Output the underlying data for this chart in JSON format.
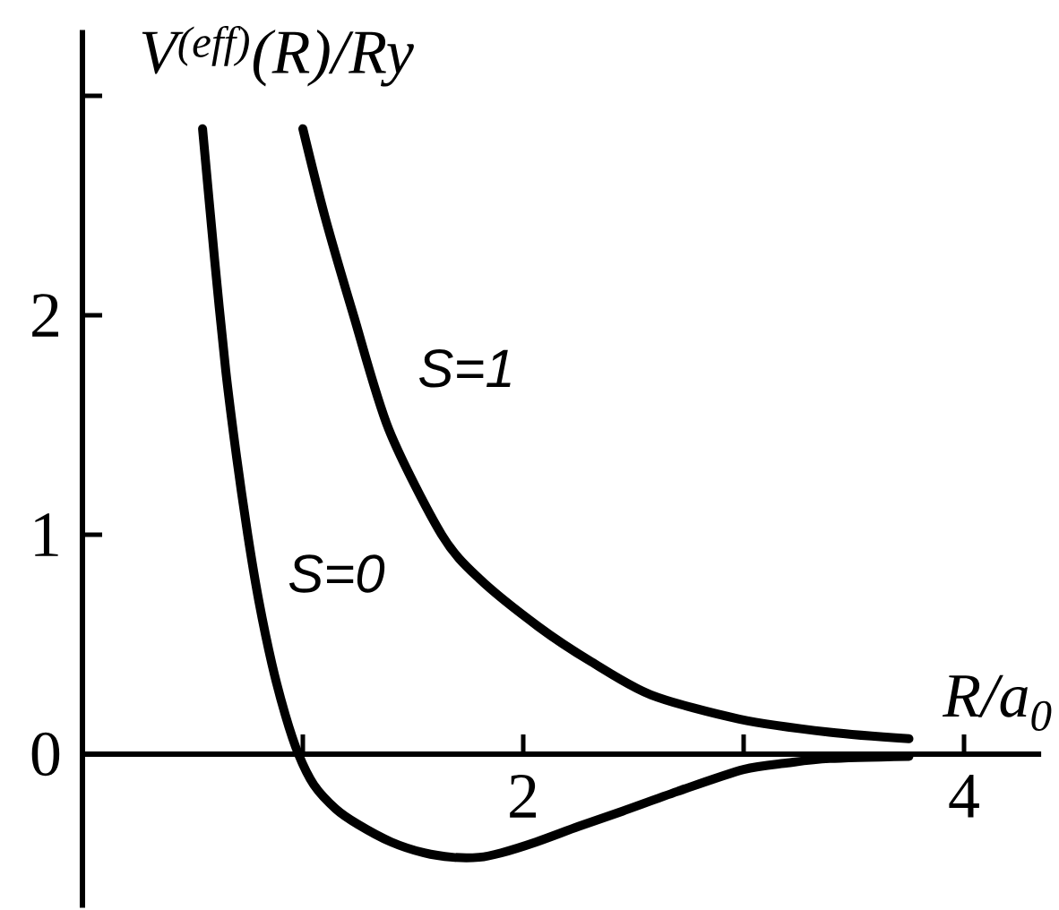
{
  "chart_data": {
    "type": "line",
    "xlabel": "R/a$_{0}$",
    "ylabel": "V$^{(eff)}$(R)/Ry",
    "xlim": [
      0,
      4.35
    ],
    "ylim": [
      -0.7,
      3.3
    ],
    "xticks": [
      {
        "value": 1,
        "label": null
      },
      2,
      {
        "value": 3,
        "label": null
      },
      4
    ],
    "yticks": [
      0,
      1,
      2,
      {
        "value": 3,
        "label": null
      }
    ],
    "series": [
      {
        "name": "S=0",
        "color": "#000000",
        "x": [
          0.545,
          0.6,
          0.65,
          0.7,
          0.75,
          0.8,
          0.86,
          0.92,
          0.98,
          1.05,
          1.15,
          1.25,
          1.4,
          1.55,
          1.68,
          1.8,
          1.9,
          2.06,
          2.25,
          2.45,
          2.7,
          3.0,
          3.2,
          3.39,
          3.75
        ],
        "values": [
          2.85,
          2.25,
          1.75,
          1.35,
          1.0,
          0.7,
          0.41,
          0.18,
          0.0,
          -0.14,
          -0.25,
          -0.32,
          -0.4,
          -0.45,
          -0.47,
          -0.47,
          -0.45,
          -0.4,
          -0.33,
          -0.26,
          -0.17,
          -0.07,
          -0.04,
          -0.02,
          -0.01
        ]
      },
      {
        "name": "S=1",
        "color": "#000000",
        "x": [
          1.0,
          1.1,
          1.23,
          1.39,
          1.63,
          1.8,
          2.07,
          2.31,
          2.58,
          2.98,
          3.39,
          3.75
        ],
        "values": [
          2.85,
          2.45,
          2.0,
          1.48,
          1.0,
          0.8,
          0.58,
          0.42,
          0.27,
          0.16,
          0.1,
          0.07
        ]
      }
    ]
  }
}
